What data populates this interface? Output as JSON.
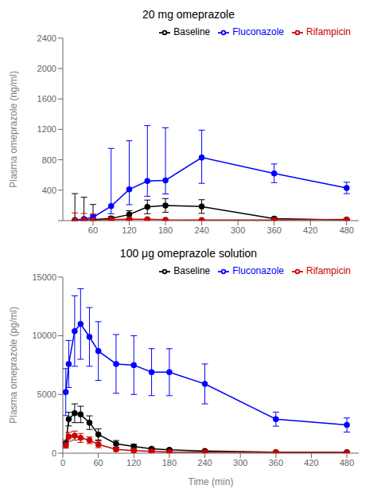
{
  "chart_data": [
    {
      "type": "line",
      "title": "20 mg omeprazole",
      "y_label": "Plasma omeprazole (ng/ml)",
      "x": [
        30,
        45,
        60,
        90,
        120,
        150,
        180,
        240,
        360,
        480
      ],
      "xlim": [
        10,
        500
      ],
      "xticks": [
        60,
        120,
        180,
        240,
        300,
        360,
        420,
        480
      ],
      "ylim": [
        0,
        2400
      ],
      "yticks": [
        {
          "value": 0,
          "label": ""
        },
        400,
        800,
        1200,
        1600,
        2000,
        2400
      ],
      "grid": false,
      "legend": "upper right",
      "marker": "circle",
      "line_style": "solid",
      "series": [
        {
          "name": "Baseline",
          "color": "#000000",
          "values": [
            5,
            8,
            12,
            30,
            80,
            180,
            200,
            185,
            25,
            8
          ],
          "yerr_lo": [
            4,
            5,
            8,
            20,
            50,
            90,
            90,
            90,
            18,
            5
          ],
          "yerr_hi": [
            350,
            300,
            200,
            20,
            50,
            90,
            90,
            90,
            18,
            5
          ]
        },
        {
          "name": "Fluconazole",
          "color": "#0000FF",
          "values": [
            8,
            22,
            45,
            190,
            410,
            520,
            530,
            830,
            620,
            430
          ],
          "yerr_lo": [
            5,
            15,
            30,
            100,
            200,
            200,
            180,
            340,
            120,
            75
          ],
          "yerr_hi": [
            5,
            15,
            30,
            760,
            640,
            730,
            690,
            360,
            125,
            75
          ]
        },
        {
          "name": "Rifampicin",
          "color": "#CC0000",
          "values": [
            2,
            4,
            6,
            12,
            18,
            18,
            10,
            8,
            8,
            15
          ],
          "yerr_lo": [
            2,
            3,
            5,
            8,
            12,
            12,
            8,
            5,
            5,
            8
          ],
          "yerr_hi": [
            100,
            90,
            80,
            8,
            12,
            12,
            8,
            5,
            5,
            8
          ]
        }
      ]
    },
    {
      "type": "line",
      "title": "100 μg omeprazole solution",
      "y_label": "Plasma omeprazole (pg/ml)",
      "x_label": "Time (min)",
      "x": [
        5,
        10,
        20,
        30,
        45,
        60,
        90,
        120,
        150,
        180,
        240,
        360,
        480
      ],
      "xlim": [
        0,
        500
      ],
      "xticks": [
        0,
        60,
        120,
        180,
        240,
        300,
        360,
        420,
        480
      ],
      "ylim": [
        0,
        15000
      ],
      "yticks": [
        0,
        5000,
        10000,
        15000
      ],
      "grid": false,
      "legend": "upper right",
      "marker": "circle",
      "line_style": "solid",
      "series": [
        {
          "name": "Baseline",
          "color": "#000000",
          "values": [
            820,
            2900,
            3400,
            3300,
            2600,
            1600,
            800,
            580,
            380,
            280,
            180,
            90,
            90
          ],
          "yerr_lo": [
            280,
            580,
            800,
            700,
            580,
            480,
            280,
            180,
            90,
            90,
            80,
            40,
            40
          ],
          "yerr_hi": [
            280,
            580,
            800,
            700,
            580,
            480,
            280,
            180,
            90,
            90,
            80,
            40,
            40
          ]
        },
        {
          "name": "Fluconazole",
          "color": "#0000FF",
          "values": [
            5200,
            7600,
            10400,
            11000,
            9900,
            8700,
            7600,
            7500,
            6900,
            6900,
            5900,
            2900,
            2400
          ],
          "yerr_lo": [
            2000,
            2000,
            3000,
            3000,
            2500,
            2500,
            2500,
            2500,
            2000,
            2000,
            1700,
            600,
            600
          ],
          "yerr_hi": [
            2000,
            2000,
            3000,
            3000,
            2500,
            2500,
            2500,
            2500,
            2000,
            2000,
            1700,
            600,
            600
          ]
        },
        {
          "name": "Rifampicin",
          "color": "#CC0000",
          "values": [
            700,
            1400,
            1500,
            1300,
            1100,
            750,
            320,
            220,
            160,
            110,
            80,
            60,
            60
          ],
          "yerr_lo": [
            280,
            380,
            380,
            380,
            280,
            280,
            130,
            90,
            70,
            45,
            40,
            30,
            30
          ],
          "yerr_hi": [
            280,
            380,
            380,
            380,
            280,
            280,
            130,
            90,
            70,
            45,
            40,
            30,
            30
          ]
        }
      ]
    }
  ]
}
